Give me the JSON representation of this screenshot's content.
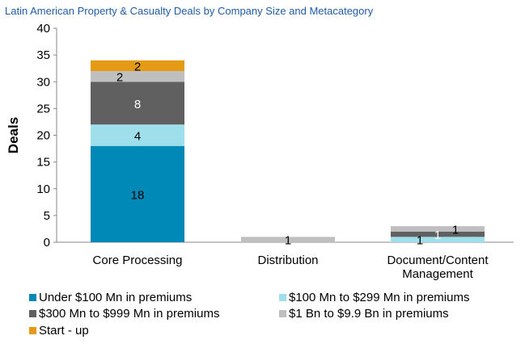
{
  "chart_data": {
    "type": "bar",
    "stacked": true,
    "title": "Latin American Property & Casualty Deals by Company Size and Metacategory",
    "xlabel": "",
    "ylabel": "Deals",
    "ylim": [
      0,
      40
    ],
    "yticks": [
      0,
      5,
      10,
      15,
      20,
      25,
      30,
      35,
      40
    ],
    "grid": false,
    "legend_position": "bottom",
    "categories": [
      "Core Processing",
      "Distribution",
      "Document/Content Management"
    ],
    "series": [
      {
        "name": "Under $100 Mn in premiums",
        "color": "#0089b7",
        "values": [
          18,
          0,
          0
        ]
      },
      {
        "name": "$100 Mn to $299 Mn in premiums",
        "color": "#9fdfeb",
        "values": [
          4,
          0,
          1
        ]
      },
      {
        "name": "$300 Mn to $999 Mn in premiums",
        "color": "#606060",
        "values": [
          8,
          0,
          1
        ]
      },
      {
        "name": "$1 Bn to $9.9 Bn in premiums",
        "color": "#bfbfbf",
        "values": [
          2,
          1,
          1
        ]
      },
      {
        "name": "Start - up",
        "color": "#e59a16",
        "values": [
          2,
          0,
          0
        ]
      }
    ]
  }
}
